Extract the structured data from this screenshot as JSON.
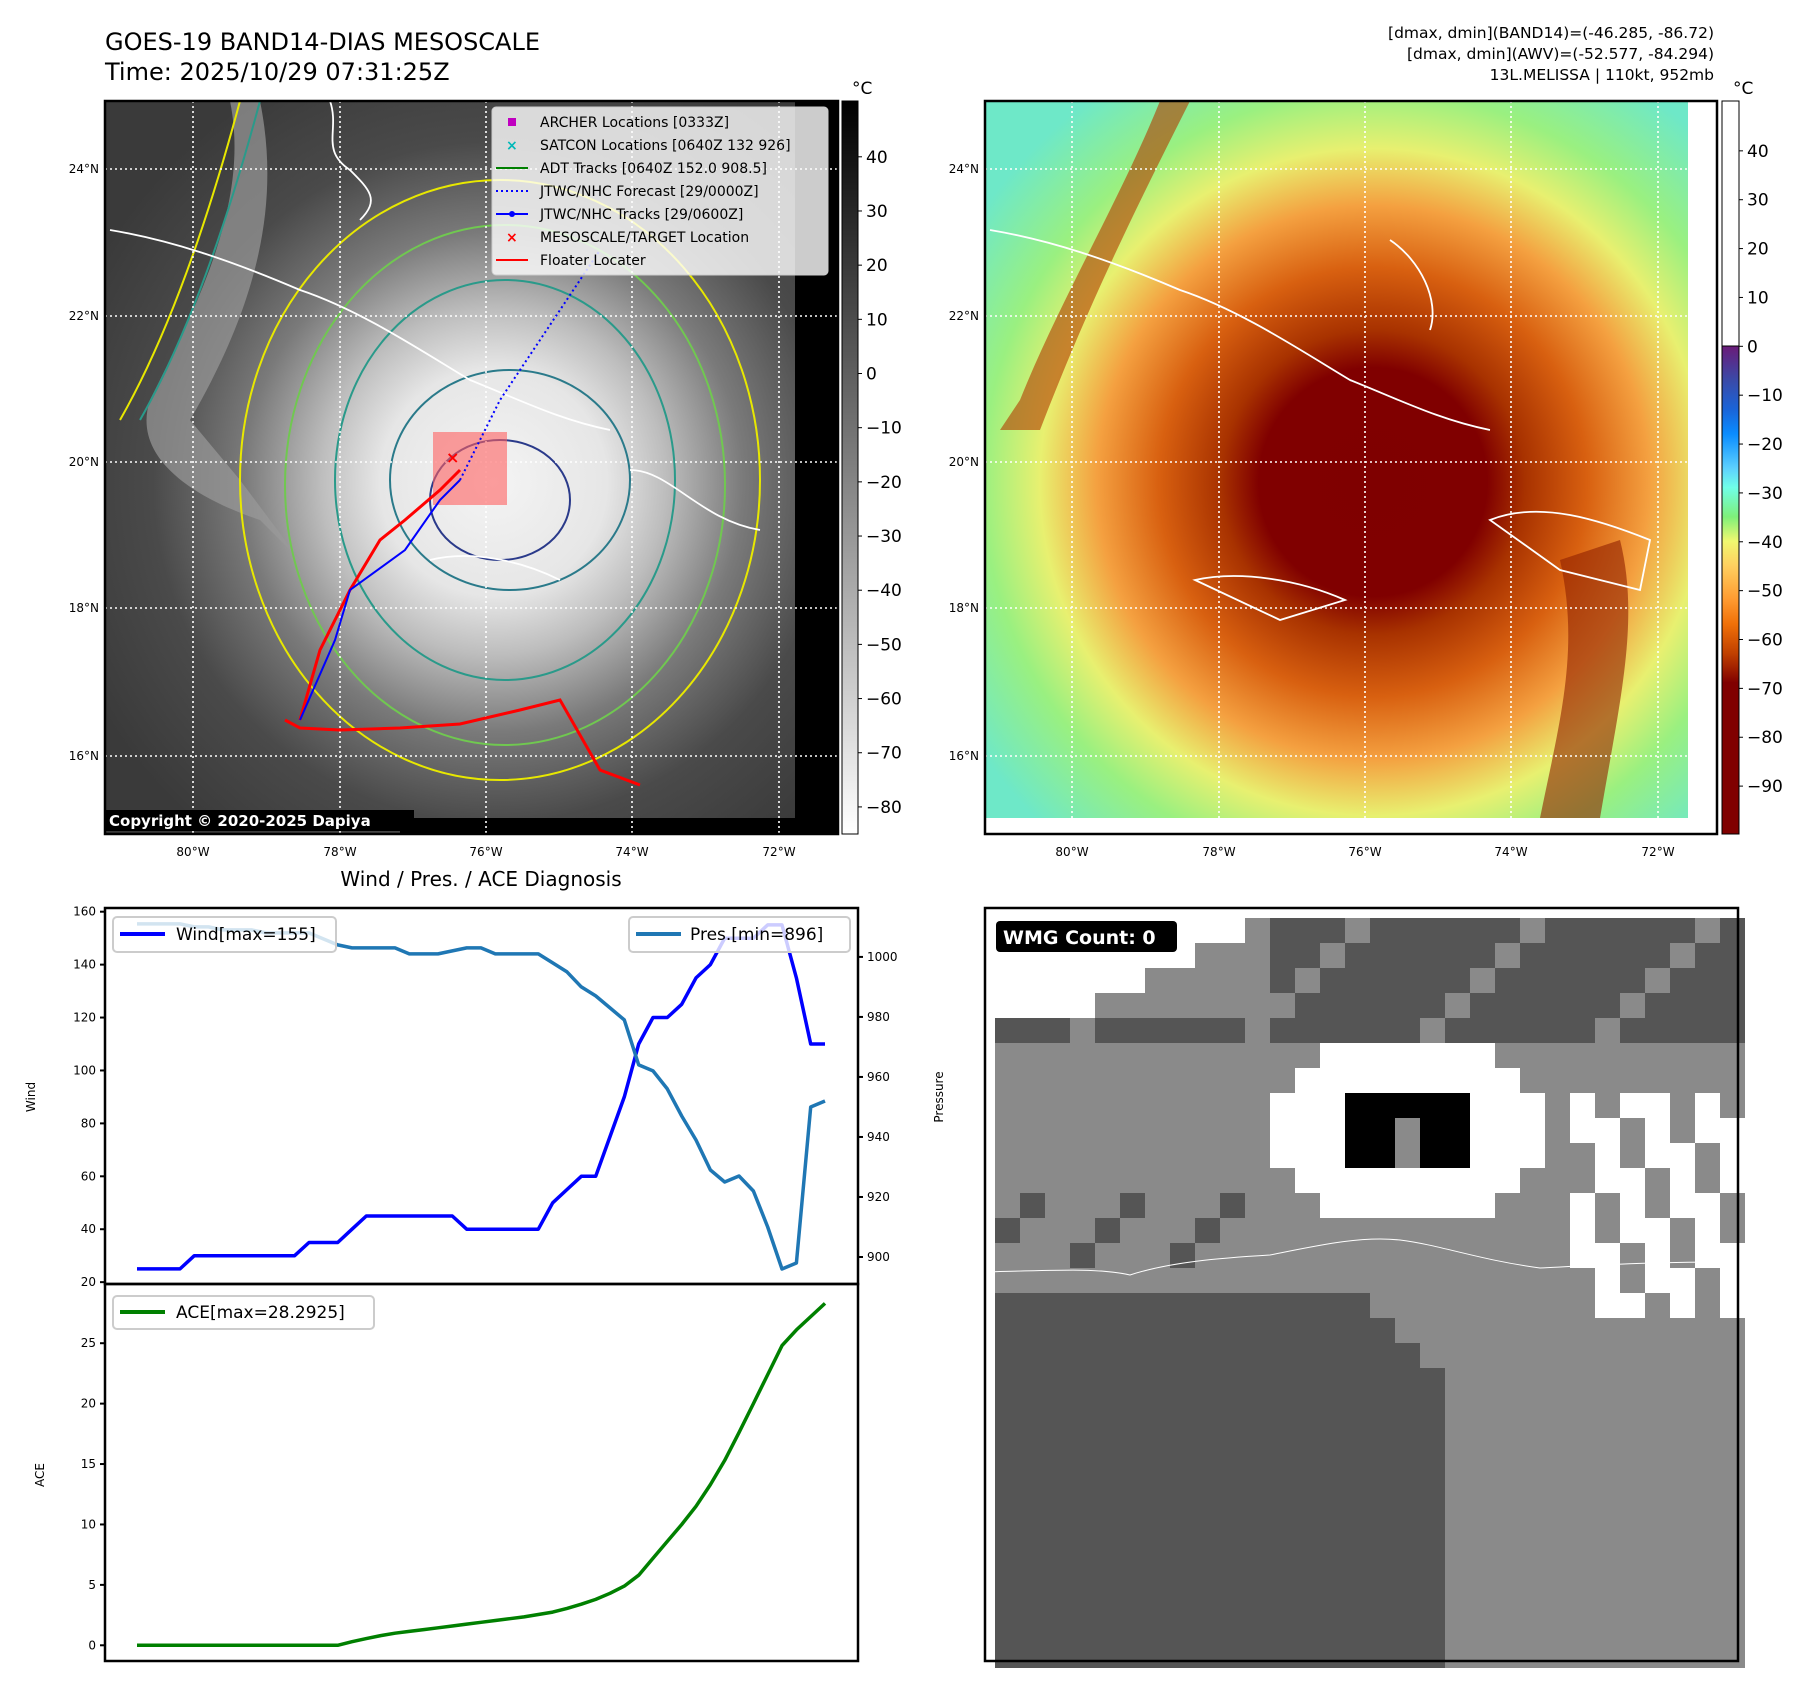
{
  "header": {
    "title": "GOES-19 BAND14-DIAS MESOSCALE",
    "time": "Time: 2025/10/29 07:31:25Z",
    "stats_band14": "[dmax, dmin](BAND14)=(-46.285, -86.72)",
    "stats_awv": "[dmax, dmin](AWV)=(-52.577, -84.294)",
    "storm": "13L.MELISSA | 110kt, 952mb"
  },
  "map_left": {
    "colorbar_unit": "°C",
    "colorbar_ticks": [
      "40",
      "30",
      "20",
      "10",
      "0",
      "−10",
      "−20",
      "−30",
      "−40",
      "−50",
      "−60",
      "−70",
      "−80"
    ],
    "colorbar_values": [
      40,
      30,
      20,
      10,
      0,
      -10,
      -20,
      -30,
      -40,
      -50,
      -60,
      -70,
      -80
    ],
    "colorbar_range": [
      50.3,
      -85
    ],
    "lat_ticks": [
      "24°N",
      "22°N",
      "20°N",
      "18°N",
      "16°N"
    ],
    "lon_ticks": [
      "80°W",
      "78°W",
      "76°W",
      "74°W",
      "72°W"
    ],
    "copyright": "Copyright © 2020-2025 Dapiya",
    "legend": [
      {
        "label": "ARCHER Locations [0333Z]",
        "color": "#c000c0",
        "marker": "square"
      },
      {
        "label": "SATCON Locations [0640Z 132 926]",
        "color": "#00b8b8",
        "marker": "x"
      },
      {
        "label": "ADT Tracks [0640Z 152.0 908.5]",
        "color": "#008000",
        "marker": "line"
      },
      {
        "label": "JTWC/NHC Forecast [29/0000Z]",
        "color": "#0000ff",
        "marker": "dotted"
      },
      {
        "label": "JTWC/NHC Tracks [29/0600Z]",
        "color": "#0000ff",
        "marker": "line-dot"
      },
      {
        "label": "MESOSCALE/TARGET Location",
        "color": "#ff0000",
        "marker": "x"
      },
      {
        "label": "Floater Locater",
        "color": "#ff0000",
        "marker": "line"
      }
    ]
  },
  "map_right": {
    "colorbar_unit": "°C",
    "colorbar_ticks": [
      "40",
      "30",
      "20",
      "10",
      "0",
      "−10",
      "−20",
      "−30",
      "−40",
      "−50",
      "−60",
      "−70",
      "−80",
      "−90"
    ],
    "colorbar_values": [
      40,
      30,
      20,
      10,
      0,
      -10,
      -20,
      -30,
      -40,
      -50,
      -60,
      -70,
      -80,
      -90
    ],
    "colorbar_range": [
      50.2,
      -99.8
    ],
    "lat_ticks": [
      "24°N",
      "22°N",
      "20°N",
      "18°N",
      "16°N"
    ],
    "lon_ticks": [
      "80°W",
      "78°W",
      "76°W",
      "74°W",
      "72°W"
    ]
  },
  "wmg": {
    "label": "WMG Count: 0"
  },
  "chart_data": [
    {
      "type": "line",
      "title": "Wind / Pres. / ACE Diagnosis",
      "ylabel": "Wind",
      "y2label": "Pressure",
      "ylim": [
        19.3,
        161.4
      ],
      "y2lim": [
        891,
        1016.3
      ],
      "xlim": [
        -2.23,
        50.3
      ],
      "yticks": [
        20,
        40,
        60,
        80,
        100,
        120,
        140,
        160
      ],
      "y2ticks": [
        900,
        920,
        940,
        960,
        980,
        1000
      ],
      "series": [
        {
          "name": "Wind[max=155]",
          "axis": "left",
          "color": "#0000ff",
          "values": [
            25,
            25,
            25,
            25,
            30,
            30,
            30,
            30,
            30,
            30,
            30,
            30,
            35,
            35,
            35,
            40,
            45,
            45,
            45,
            45,
            45,
            45,
            45,
            40,
            40,
            40,
            40,
            40,
            40,
            50,
            55,
            60,
            60,
            75,
            90,
            110,
            120,
            120,
            125,
            135,
            140,
            150,
            150,
            150,
            155,
            155,
            135,
            110,
            110
          ]
        },
        {
          "name": "Pres.[min=896]",
          "axis": "right",
          "color": "#1f77b4",
          "values": [
            1011,
            1011,
            1011,
            1011,
            1010,
            1010,
            1009,
            1009,
            1009,
            1008,
            1008,
            1008,
            1008,
            1006,
            1004,
            1003,
            1003,
            1003,
            1003,
            1001,
            1001,
            1001,
            1002,
            1003,
            1003,
            1001,
            1001,
            1001,
            1001,
            998,
            995,
            990,
            987,
            983,
            979,
            964,
            962,
            956,
            947,
            939,
            929,
            925,
            927,
            922,
            910,
            896,
            898,
            950,
            952
          ]
        }
      ]
    },
    {
      "type": "line",
      "ylabel": "ACE",
      "ylim": [
        -1.3,
        29.9
      ],
      "xlim": [
        -2.23,
        50.3
      ],
      "yticks": [
        0,
        5,
        10,
        15,
        20,
        25
      ],
      "series": [
        {
          "name": "ACE[max=28.2925]",
          "color": "#008000",
          "values": [
            0,
            0,
            0,
            0,
            0,
            0,
            0,
            0,
            0,
            0,
            0,
            0,
            0,
            0,
            0,
            0.3,
            0.55,
            0.8,
            1.0,
            1.15,
            1.3,
            1.45,
            1.6,
            1.75,
            1.9,
            2.05,
            2.2,
            2.35,
            2.55,
            2.75,
            3.05,
            3.4,
            3.8,
            4.3,
            4.9,
            5.8,
            7.2,
            8.6,
            10.0,
            11.5,
            13.3,
            15.3,
            17.6,
            20.0,
            22.4,
            24.8,
            26.1,
            27.2,
            28.2925
          ]
        }
      ]
    }
  ]
}
